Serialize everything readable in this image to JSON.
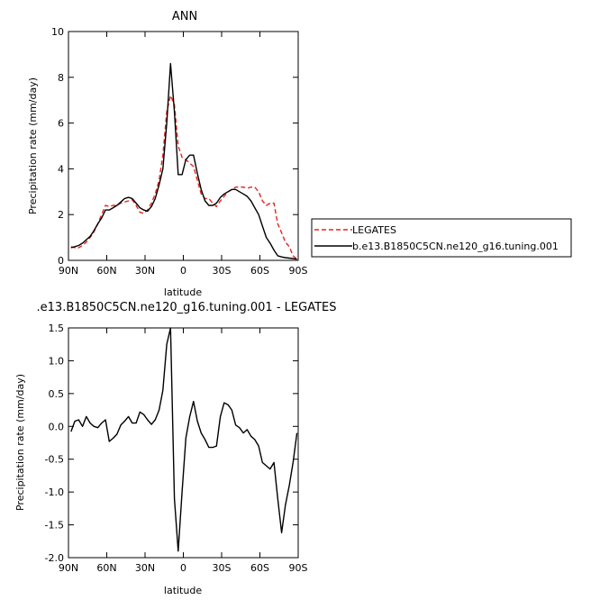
{
  "chart_data": [
    {
      "type": "line",
      "title": "ANN",
      "xlabel": "latitude",
      "ylabel": "Precipitation rate (mm/day)",
      "xlim": [
        90,
        -90
      ],
      "ylim": [
        0,
        10
      ],
      "x_ticks": [
        {
          "value": 90,
          "label": "90N"
        },
        {
          "value": 60,
          "label": "60N"
        },
        {
          "value": 30,
          "label": "30N"
        },
        {
          "value": 0,
          "label": "0"
        },
        {
          "value": -30,
          "label": "30S"
        },
        {
          "value": -60,
          "label": "60S"
        },
        {
          "value": -90,
          "label": "90S"
        }
      ],
      "y_ticks": [
        {
          "value": 0,
          "label": "0"
        },
        {
          "value": 2,
          "label": "2"
        },
        {
          "value": 4,
          "label": "4"
        },
        {
          "value": 6,
          "label": "6"
        },
        {
          "value": 8,
          "label": "8"
        },
        {
          "value": 10,
          "label": "10"
        }
      ],
      "grid": false,
      "legend_position": "right",
      "series": [
        {
          "name": "LEGATES",
          "color": "#e8231d",
          "dash": "dashed",
          "x": [
            88,
            85,
            82,
            79,
            76,
            73,
            70,
            67,
            64,
            61,
            58,
            55,
            52,
            49,
            46,
            43,
            40,
            37,
            34,
            31,
            28,
            25,
            22,
            19,
            16,
            13,
            10,
            7,
            4,
            1,
            -2,
            -5,
            -8,
            -11,
            -14,
            -17,
            -20,
            -23,
            -26,
            -29,
            -32,
            -35,
            -38,
            -41,
            -44,
            -47,
            -50,
            -53,
            -56,
            -59,
            -62,
            -65,
            -68,
            -71,
            -74,
            -77,
            -80,
            -83,
            -86,
            -89
          ],
          "y": [
            0.6,
            0.55,
            0.55,
            0.65,
            0.8,
            1.0,
            1.25,
            1.6,
            2.0,
            2.4,
            2.35,
            2.4,
            2.4,
            2.5,
            2.55,
            2.6,
            2.65,
            2.4,
            2.1,
            2.05,
            2.2,
            2.5,
            2.9,
            3.5,
            4.6,
            6.5,
            7.2,
            6.8,
            5.0,
            4.5,
            4.4,
            4.25,
            4.1,
            3.5,
            2.9,
            2.7,
            2.7,
            2.5,
            2.35,
            2.6,
            2.8,
            3.0,
            3.1,
            3.2,
            3.2,
            3.2,
            3.15,
            3.2,
            3.2,
            3.0,
            2.6,
            2.4,
            2.5,
            2.5,
            1.6,
            1.2,
            0.8,
            0.6,
            0.2,
            0.05
          ]
        },
        {
          "name": "b.e13.B1850C5CN.ne120_g16.tuning.001",
          "color": "#000000",
          "dash": "solid",
          "x": [
            88,
            85,
            82,
            79,
            76,
            73,
            70,
            67,
            64,
            61,
            58,
            55,
            52,
            49,
            46,
            43,
            40,
            37,
            34,
            31,
            28,
            25,
            22,
            19,
            16,
            13,
            10,
            7,
            4,
            1,
            -2,
            -5,
            -8,
            -11,
            -14,
            -17,
            -20,
            -23,
            -26,
            -29,
            -32,
            -35,
            -38,
            -41,
            -44,
            -47,
            -50,
            -53,
            -56,
            -59,
            -62,
            -65,
            -68,
            -71,
            -74,
            -77,
            -80,
            -83,
            -86,
            -89
          ],
          "y": [
            0.55,
            0.6,
            0.65,
            0.75,
            0.9,
            1.05,
            1.3,
            1.6,
            1.85,
            2.2,
            2.2,
            2.3,
            2.4,
            2.55,
            2.7,
            2.75,
            2.7,
            2.5,
            2.3,
            2.2,
            2.15,
            2.35,
            2.7,
            3.3,
            4.0,
            6.0,
            8.6,
            6.5,
            3.75,
            3.75,
            4.4,
            4.6,
            4.6,
            3.8,
            3.1,
            2.6,
            2.4,
            2.4,
            2.5,
            2.75,
            2.9,
            3.0,
            3.1,
            3.1,
            3.0,
            2.9,
            2.8,
            2.6,
            2.3,
            2.0,
            1.5,
            1.0,
            0.75,
            0.45,
            0.2,
            0.15,
            0.12,
            0.1,
            0.08,
            0.05
          ]
        }
      ]
    },
    {
      "type": "line",
      "title": ".e13.B1850C5CN.ne120_g16.tuning.001 - LEGATES",
      "xlabel": "latitude",
      "ylabel": "Precipitation rate (mm/day)",
      "xlim": [
        90,
        -90
      ],
      "ylim": [
        -2.0,
        1.5
      ],
      "x_ticks": [
        {
          "value": 90,
          "label": "90N"
        },
        {
          "value": 60,
          "label": "60N"
        },
        {
          "value": 30,
          "label": "30N"
        },
        {
          "value": 0,
          "label": "0"
        },
        {
          "value": -30,
          "label": "30S"
        },
        {
          "value": -60,
          "label": "60S"
        },
        {
          "value": -90,
          "label": "90S"
        }
      ],
      "y_ticks": [
        {
          "value": 1.5,
          "label": "1.5"
        },
        {
          "value": 1.0,
          "label": "1.0"
        },
        {
          "value": 0.5,
          "label": "0.5"
        },
        {
          "value": 0.0,
          "label": "0.0"
        },
        {
          "value": -0.5,
          "label": "-0.5"
        },
        {
          "value": -1.0,
          "label": "-1.0"
        },
        {
          "value": -1.5,
          "label": "-1.5"
        },
        {
          "value": -2.0,
          "label": "-2.0"
        }
      ],
      "grid": false,
      "series": [
        {
          "color": "#000000",
          "dash": "solid",
          "x": [
            88,
            85,
            82,
            79,
            76,
            73,
            70,
            67,
            64,
            61,
            58,
            55,
            52,
            49,
            46,
            43,
            40,
            37,
            34,
            31,
            28,
            25,
            22,
            19,
            16,
            13,
            10,
            7,
            4,
            1,
            -2,
            -5,
            -8,
            -11,
            -14,
            -17,
            -20,
            -23,
            -26,
            -29,
            -32,
            -35,
            -38,
            -41,
            -44,
            -47,
            -50,
            -53,
            -56,
            -59,
            -62,
            -65,
            -68,
            -71,
            -74,
            -77,
            -80,
            -83,
            -86,
            -89
          ],
          "y": [
            -0.08,
            0.08,
            0.1,
            0.0,
            0.15,
            0.05,
            0.0,
            -0.02,
            0.05,
            0.1,
            -0.23,
            -0.18,
            -0.12,
            0.02,
            0.08,
            0.15,
            0.05,
            0.05,
            0.22,
            0.18,
            0.1,
            0.03,
            0.1,
            0.25,
            0.55,
            1.25,
            1.5,
            -1.1,
            -1.9,
            -1.0,
            -0.18,
            0.15,
            0.38,
            0.08,
            -0.1,
            -0.2,
            -0.32,
            -0.32,
            -0.3,
            0.15,
            0.36,
            0.33,
            0.25,
            0.02,
            -0.02,
            -0.1,
            -0.05,
            -0.15,
            -0.2,
            -0.3,
            -0.55,
            -0.6,
            -0.65,
            -0.55,
            -1.1,
            -1.62,
            -1.2,
            -0.9,
            -0.55,
            -0.1
          ]
        }
      ]
    }
  ]
}
